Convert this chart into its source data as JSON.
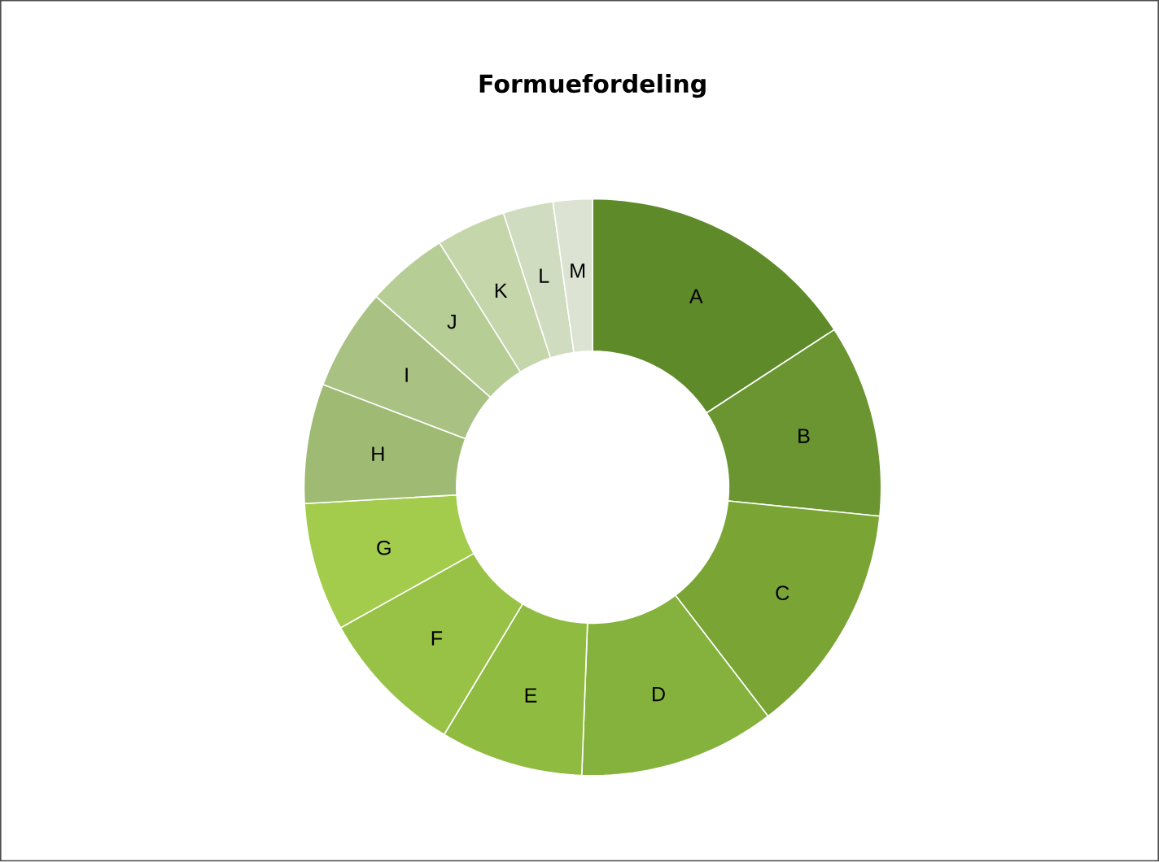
{
  "chart_data": {
    "type": "donut",
    "title": "Formuefordeling",
    "categories": [
      "A",
      "B",
      "C",
      "D",
      "E",
      "F",
      "G",
      "H",
      "I",
      "J",
      "K",
      "L",
      "M"
    ],
    "values": [
      15.8,
      10.8,
      13.0,
      11.0,
      8.0,
      8.3,
      7.2,
      6.7,
      5.7,
      4.6,
      3.9,
      2.8,
      2.2
    ],
    "colors": [
      "#5f8a2a",
      "#6a9530",
      "#7aa535",
      "#85b23c",
      "#8fbb40",
      "#98c245",
      "#a3cb4c",
      "#9fba72",
      "#a9c283",
      "#b7cd96",
      "#c5d6ab",
      "#d0dcc0",
      "#dde3d3"
    ]
  }
}
